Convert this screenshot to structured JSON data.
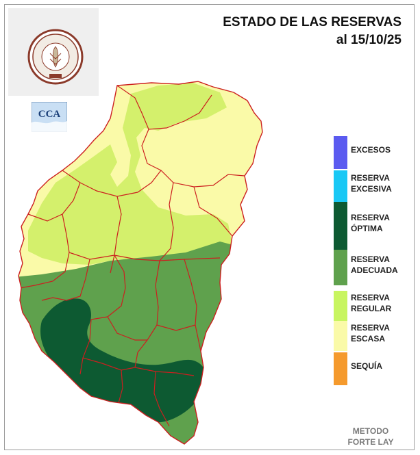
{
  "title": {
    "line1": "ESTADO DE LAS RESERVAS",
    "line2": "al 15/10/25"
  },
  "logo": {
    "name": "BOLSA DE CEREALES DE ENTRE RIOS",
    "year": "1970"
  },
  "secondary_logo": {
    "text": "CCA"
  },
  "legend": [
    {
      "id": "excesos",
      "label": "EXCESOS",
      "color": "#5b5bf0"
    },
    {
      "id": "reserva-excesiva",
      "label": "RESERVA\nEXCESIVA",
      "color": "#19c8f5"
    },
    {
      "id": "reserva-optima",
      "label": "RESERVA\nÓPTIMA",
      "color": "#0d5a32"
    },
    {
      "id": "reserva-adecuada",
      "label": "RESERVA\nADECUADA",
      "color": "#5fa14d"
    },
    {
      "id": "reserva-regular",
      "label": "RESERVA\nREGULAR",
      "color": "#c8f560"
    },
    {
      "id": "reserva-escasa",
      "label": "RESERVA\nESCASA",
      "color": "#fafaa8"
    },
    {
      "id": "sequia",
      "label": "SEQUÍA",
      "color": "#f59a2d"
    }
  ],
  "method": {
    "line1": "METODO",
    "line2": "FORTE LAY"
  },
  "colors": {
    "border_lines": "#cc1f1f",
    "outline": "#6a6a6a",
    "escasa": "#fafaa8",
    "regular": "#d4f06c",
    "adecuada": "#5fa14d",
    "optima": "#0d5a32",
    "logo_ring": "#8b3a2a"
  }
}
